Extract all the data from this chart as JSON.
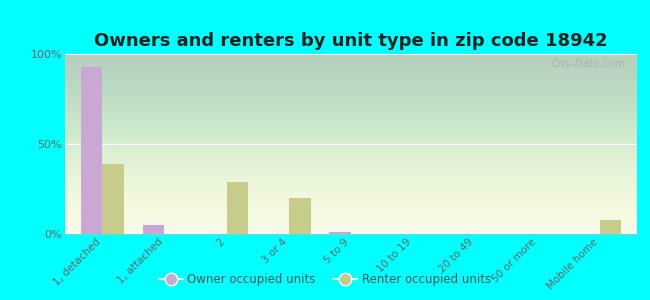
{
  "title": "Owners and renters by unit type in zip code 18942",
  "categories": [
    "1, detached",
    "1, attached",
    "2",
    "3 or 4",
    "5 to 9",
    "10 to 19",
    "20 to 49",
    "50 or more",
    "Mobile home"
  ],
  "owner_values": [
    93,
    5,
    0,
    0,
    1,
    0,
    0,
    0,
    0
  ],
  "renter_values": [
    39,
    0,
    29,
    20,
    0,
    0,
    0,
    0,
    8
  ],
  "owner_color": "#c9a8d4",
  "renter_color": "#c8cc8a",
  "background_color": "#00ffff",
  "ylim": [
    0,
    100
  ],
  "yticks": [
    0,
    50,
    100
  ],
  "ytick_labels": [
    "0%",
    "50%",
    "100%"
  ],
  "bar_width": 0.35,
  "legend_owner": "Owner occupied units",
  "legend_renter": "Renter occupied units",
  "title_fontsize": 13,
  "watermark": "City-Data.com"
}
